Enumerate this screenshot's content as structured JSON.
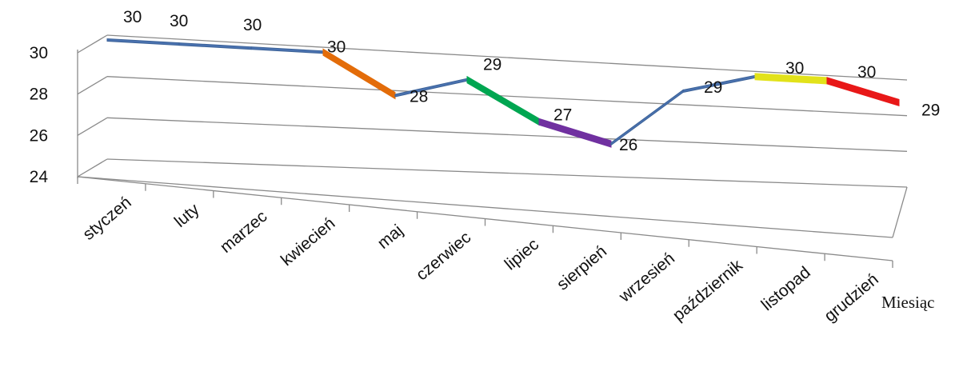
{
  "chart_data": {
    "type": "line",
    "title": "",
    "xlabel": "Miesiąc",
    "ylabel": "",
    "ylim": [
      24,
      30
    ],
    "y_ticks": [
      24,
      26,
      28,
      30
    ],
    "grid": true,
    "legend": "none",
    "style": "3d",
    "categories": [
      "styczeń",
      "luty",
      "marzec",
      "kwiecień",
      "maj",
      "czerwiec",
      "lipiec",
      "sierpień",
      "wrzesień",
      "październik",
      "listopad",
      "grudzień"
    ],
    "values": [
      30,
      30,
      30,
      30,
      28,
      29,
      27,
      26,
      29,
      30,
      30,
      29
    ],
    "segment_colors": [
      "#4a72b0",
      "#4a72b0",
      "#4a72b0",
      "#e36c09",
      "#4a72b0",
      "#00a651",
      "#7030a0",
      "#4a72b0",
      "#4a72b0",
      "#e2e21a",
      "#e81818"
    ]
  }
}
